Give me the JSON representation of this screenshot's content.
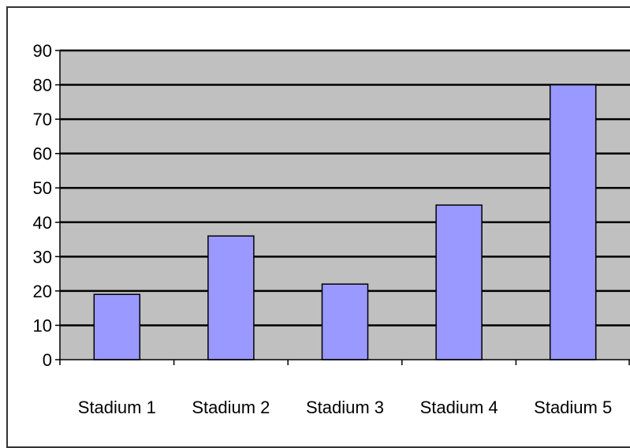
{
  "chart_data": {
    "type": "bar",
    "categories": [
      "Stadium 1",
      "Stadium 2",
      "Stadium 3",
      "Stadium 4",
      "Stadium 5"
    ],
    "values": [
      19,
      36,
      22,
      45,
      80
    ],
    "ylim": [
      0,
      90
    ],
    "yticks": [
      "0",
      "10",
      "20",
      "30",
      "40",
      "50",
      "60",
      "70",
      "80",
      "90"
    ],
    "grid": true,
    "legend": "none",
    "colors": {
      "bar_fill": "#9999ff",
      "bar_stroke": "#000000",
      "plot_background": "#c0c0c0",
      "gridline": "#000000"
    }
  }
}
